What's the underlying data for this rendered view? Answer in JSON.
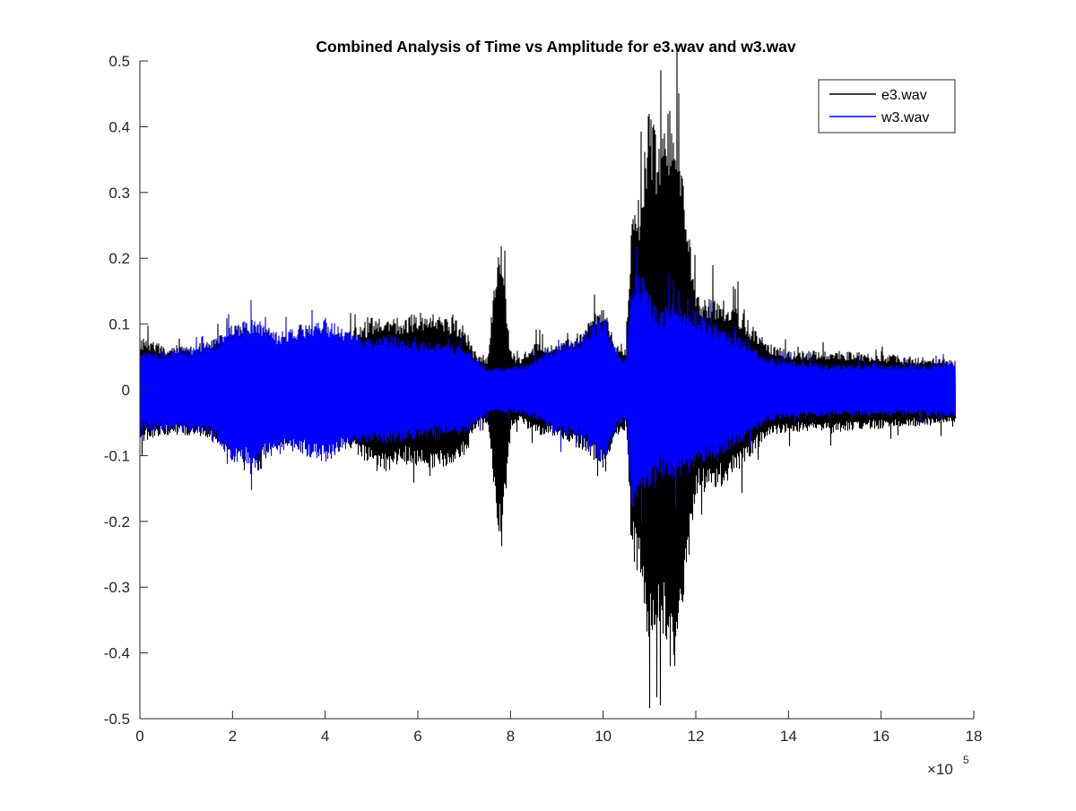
{
  "chart_data": {
    "type": "line",
    "title": "Combined Analysis of Time vs Amplitude for e3.wav and w3.wav",
    "xlabel": "",
    "ylabel": "",
    "xlim": [
      0,
      18
    ],
    "ylim": [
      -0.5,
      0.5
    ],
    "x_exponent_label": "×10",
    "x_exponent": "5",
    "x_ticks": [
      "0",
      "2",
      "4",
      "6",
      "8",
      "10",
      "12",
      "14",
      "16",
      "18"
    ],
    "y_ticks": [
      "-0.5",
      "-0.4",
      "-0.3",
      "-0.2",
      "-0.1",
      "0",
      "0.1",
      "0.2",
      "0.3",
      "0.4",
      "0.5"
    ],
    "grid": false,
    "legend_position": "top-right",
    "x_units_note": "x values in units of 1e5 samples",
    "series": [
      {
        "name": "e3.wav",
        "color": "#000000",
        "envelope_x": [
          0,
          0.5,
          1,
          1.5,
          2,
          2.5,
          3,
          3.5,
          4,
          4.5,
          5,
          5.3,
          5.6,
          6,
          6.5,
          7,
          7.2,
          7.5,
          7.7,
          7.8,
          8,
          8.2,
          8.5,
          9,
          9.5,
          10,
          10.3,
          10.5,
          10.6,
          10.8,
          11,
          11.2,
          11.5,
          11.8,
          12,
          12.5,
          13,
          13.2,
          13.5,
          14,
          15,
          16,
          17,
          17.6
        ],
        "envelope_upper": [
          0.08,
          0.07,
          0.07,
          0.075,
          0.1,
          0.1,
          0.085,
          0.08,
          0.085,
          0.09,
          0.11,
          0.12,
          0.11,
          0.12,
          0.12,
          0.1,
          0.06,
          0.05,
          0.2,
          0.22,
          0.06,
          0.05,
          0.07,
          0.07,
          0.09,
          0.13,
          0.07,
          0.06,
          0.25,
          0.3,
          0.44,
          0.38,
          0.45,
          0.28,
          0.15,
          0.14,
          0.12,
          0.1,
          0.075,
          0.06,
          0.06,
          0.055,
          0.05,
          0.045
        ],
        "envelope_lower": [
          -0.08,
          -0.07,
          -0.07,
          -0.075,
          -0.1,
          -0.1,
          -0.085,
          -0.08,
          -0.085,
          -0.09,
          -0.12,
          -0.13,
          -0.11,
          -0.12,
          -0.12,
          -0.1,
          -0.06,
          -0.05,
          -0.2,
          -0.24,
          -0.06,
          -0.05,
          -0.07,
          -0.07,
          -0.09,
          -0.12,
          -0.07,
          -0.06,
          -0.25,
          -0.3,
          -0.4,
          -0.36,
          -0.44,
          -0.28,
          -0.16,
          -0.15,
          -0.12,
          -0.1,
          -0.075,
          -0.065,
          -0.065,
          -0.06,
          -0.055,
          -0.05
        ]
      },
      {
        "name": "w3.wav",
        "color": "#0000ff",
        "envelope_x": [
          0,
          0.5,
          1,
          1.5,
          2,
          2.5,
          3,
          3.5,
          4,
          4.5,
          5,
          5.5,
          6,
          6.5,
          7,
          7.5,
          8,
          8.5,
          9,
          9.5,
          10,
          10.3,
          10.5,
          10.6,
          10.9,
          11.2,
          11.5,
          12,
          12.5,
          13,
          13.5,
          14,
          15,
          16,
          17,
          17.6
        ],
        "envelope_upper": [
          0.06,
          0.06,
          0.065,
          0.07,
          0.1,
          0.11,
          0.09,
          0.1,
          0.11,
          0.09,
          0.08,
          0.085,
          0.075,
          0.07,
          0.07,
          0.035,
          0.035,
          0.045,
          0.07,
          0.08,
          0.12,
          0.06,
          0.045,
          0.18,
          0.17,
          0.12,
          0.14,
          0.12,
          0.1,
          0.08,
          0.05,
          0.045,
          0.04,
          0.04,
          0.04,
          0.045
        ],
        "envelope_lower": [
          -0.06,
          -0.065,
          -0.065,
          -0.07,
          -0.11,
          -0.12,
          -0.09,
          -0.1,
          -0.11,
          -0.09,
          -0.08,
          -0.085,
          -0.075,
          -0.07,
          -0.07,
          -0.035,
          -0.035,
          -0.045,
          -0.07,
          -0.08,
          -0.12,
          -0.06,
          -0.045,
          -0.19,
          -0.17,
          -0.13,
          -0.14,
          -0.12,
          -0.1,
          -0.08,
          -0.05,
          -0.045,
          -0.04,
          -0.04,
          -0.04,
          -0.045
        ]
      }
    ]
  }
}
